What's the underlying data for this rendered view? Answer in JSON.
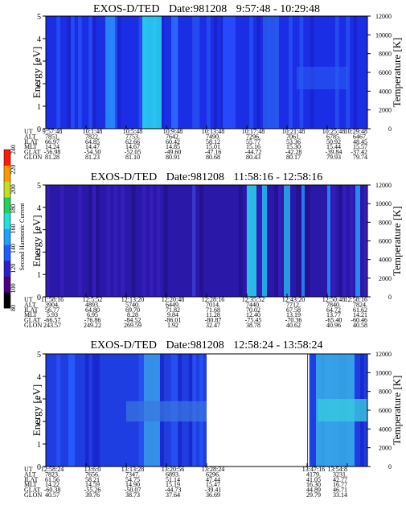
{
  "chart_data": [
    {
      "type": "heatmap",
      "title": "EXOS-D/TED",
      "date_label": "Date:981208",
      "time_range": "9:57:48 - 10:29:48",
      "ylabel": "Energy [eV]",
      "ylabel_right": "Temperature [K]",
      "ylim": [
        0,
        5
      ],
      "yticks": [
        "0",
        "1",
        "2",
        "3",
        "4",
        "5"
      ],
      "ylim_right": [
        0,
        12000
      ],
      "yticks_right": [
        "0",
        "2000",
        "4000",
        "6000",
        "8000",
        "10000",
        "12000"
      ],
      "row_labels": [
        "UT",
        "ALT",
        "ILAT",
        "MLT",
        "GLAT",
        "GLON"
      ],
      "columns": [
        [
          "9:57:48",
          "7851.",
          "66.97",
          "14.24",
          "-56.98",
          "81.28"
        ],
        [
          "10:1:48",
          "7822.",
          "64.85",
          "14.47",
          "-54.50",
          "81.23"
        ],
        [
          "10:5:48",
          "7753.",
          "62.66",
          "14.67",
          "-52.05",
          "81.10"
        ],
        [
          "10:9:48",
          "7642.",
          "60.42",
          "14.85",
          "-49.60",
          "80.91"
        ],
        [
          "10:13:48",
          "7490.",
          "58.12",
          "15.01",
          "-47.16",
          "80.68"
        ],
        [
          "10:17:48",
          "7296.",
          "55.77",
          "15.16",
          "-44.72",
          "80.43"
        ],
        [
          "10:21:48",
          "7061.",
          "53.36",
          "15.30",
          "-42.28",
          "80.17"
        ],
        [
          "10:25:48",
          "6785.",
          "50.92",
          "15.44",
          "-39.84",
          "79.93"
        ],
        [
          "10:29:48",
          "6467.",
          "48.45",
          "15.57",
          "-37.42",
          "79.74"
        ]
      ],
      "dominant_color": "#1a2ee0",
      "gaps": []
    },
    {
      "type": "heatmap",
      "title": "EXOS-D/TED",
      "date_label": "Date:981208",
      "time_range": "11:58:16 - 12:58:16",
      "ylabel": "Energy [eV]",
      "ylabel_right": "Temperature [K]",
      "ylim": [
        0,
        5
      ],
      "yticks": [
        "0",
        "1",
        "2",
        "3",
        "4",
        "5"
      ],
      "ylim_right": [
        0,
        12000
      ],
      "yticks_right": [
        "0",
        "2000",
        "4000",
        "6000",
        "8000",
        "10000",
        "12000"
      ],
      "row_labels": [
        "UT",
        "ALT",
        "ILAT",
        "MLT",
        "GLAT",
        "GLON"
      ],
      "columns": [
        [
          "11:58:16",
          "3904.",
          "56.77",
          "5.93",
          "-66.57",
          "243.57"
        ],
        [
          "12:5:52",
          "4893.",
          "64.80",
          "6.95",
          "-76.86",
          "249.22"
        ],
        [
          "12:13:20",
          "5740.",
          "69.70",
          "8.28",
          "-84.52",
          "269.59"
        ],
        [
          "12:20:48",
          "6449.",
          "71.82",
          "9.84",
          "-86.01",
          "1.92"
        ],
        [
          "12:28:16",
          "7014.",
          "71.68",
          "11.28",
          "-80.87",
          "32.47"
        ],
        [
          "12:35:52",
          "7440.",
          "70.02",
          "12.40",
          "-75.45",
          "38.78"
        ],
        [
          "12:43:20",
          "7712.",
          "67.58",
          "13.19",
          "-70.36",
          "40.62"
        ],
        [
          "12:50:48",
          "7840.",
          "64.72",
          "13.77",
          "-65.40",
          "40.96"
        ],
        [
          "12:58:16",
          "7824.",
          "61.62",
          "14.21",
          "-60.46",
          "40.58"
        ]
      ],
      "dominant_color": "#2a1ab0",
      "gaps": []
    },
    {
      "type": "heatmap",
      "title": "EXOS-D/TED",
      "date_label": "Date:981208",
      "time_range": "12:58:24 - 13:58:24",
      "ylabel": "Energy [eV]",
      "ylabel_right": "Temperature [K]",
      "ylim": [
        0,
        5
      ],
      "yticks": [
        "0",
        "1",
        "2",
        "3",
        "4",
        "5"
      ],
      "ylim_right": [
        0,
        12000
      ],
      "yticks_right": [
        "0",
        "2000",
        "4000",
        "6000",
        "8000",
        "10000",
        "12000"
      ],
      "row_labels": [
        "UT",
        "ALT",
        "ILAT",
        "MLT",
        "GLAT",
        "GLON"
      ],
      "columns": [
        [
          "12:58:24",
          "7823.",
          "61.56",
          "14.22",
          "-60.38",
          "40.57"
        ],
        [
          "13:6:0",
          "7656.",
          "58.21",
          "14.59",
          "-55.26",
          "39.76"
        ],
        [
          "13:13:28",
          "7347.",
          "54.75",
          "14.90",
          "-50.07",
          "38.73"
        ],
        [
          "13:20:56",
          "6893.",
          "51.14",
          "15.19",
          "-44.73",
          "37.64"
        ],
        [
          "13:28:24",
          "6296.",
          "47.44",
          "15.47",
          "-39.41",
          "36.69"
        ],
        [
          "13:47:16",
          "4179.",
          "41.05",
          "16.30",
          "44.89",
          "29.79"
        ],
        [
          "13:54:8",
          "3231.",
          "42.77",
          "16.77",
          "46.71",
          "33.14"
        ]
      ],
      "column_fractions": [
        0,
        0.125,
        0.25,
        0.375,
        0.5,
        0.8125,
        0.9375
      ],
      "dominant_color": "#1f3de0",
      "gaps": [
        [
          0.5,
          0.8125
        ]
      ]
    }
  ],
  "colorbar": {
    "label": "Second Harmonic Current",
    "ticks": [
      "80",
      "100",
      "120",
      "140",
      "160",
      "180",
      "200",
      "220",
      "240"
    ],
    "colors": [
      "#000000",
      "#4b0082",
      "#2f1fc8",
      "#1e5cff",
      "#1ea0ff",
      "#20e0e0",
      "#20d060",
      "#c0e020",
      "#ff9800",
      "#ff1a00"
    ]
  }
}
